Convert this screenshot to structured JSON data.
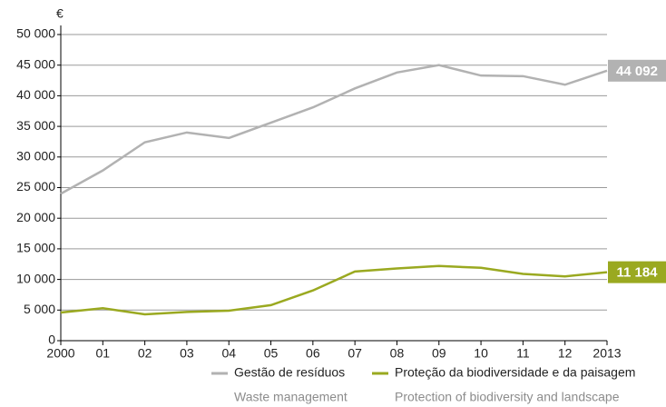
{
  "chart_data": {
    "type": "line",
    "y_unit": "€",
    "categories": [
      "2000",
      "01",
      "02",
      "03",
      "04",
      "05",
      "06",
      "07",
      "08",
      "09",
      "10",
      "11",
      "12",
      "2013"
    ],
    "series": [
      {
        "name": "Gestão de resíduos",
        "name_en": "Waste management",
        "color": "#b2b2b2",
        "values": [
          24000,
          27800,
          32400,
          34000,
          33100,
          35600,
          38100,
          41200,
          43800,
          45000,
          43300,
          43200,
          41800,
          44092
        ],
        "value_labels": [
          null,
          null,
          null,
          null,
          null,
          null,
          null,
          null,
          null,
          null,
          null,
          null,
          null,
          "44 092"
        ]
      },
      {
        "name": "Proteção da biodiversidade e da paisagem",
        "name_en": "Protection of biodiversity and landscape",
        "color": "#9aa920",
        "values": [
          4600,
          5300,
          4300,
          4700,
          4900,
          5800,
          8200,
          11300,
          11800,
          12200,
          11900,
          10900,
          10500,
          11184
        ],
        "value_labels": [
          null,
          null,
          null,
          null,
          null,
          null,
          null,
          null,
          null,
          null,
          null,
          null,
          null,
          "11 184"
        ]
      }
    ],
    "ylim": [
      0,
      50000
    ],
    "yticks": [
      0,
      {
        "value": 5000,
        "label": "5 000"
      },
      {
        "value": 10000,
        "label": "10 000"
      },
      {
        "value": 15000,
        "label": "15 000"
      },
      {
        "value": 20000,
        "label": "20 000"
      },
      {
        "value": 25000,
        "label": "25 000"
      },
      {
        "value": 30000,
        "label": "30 000"
      },
      {
        "value": 35000,
        "label": "35 000"
      },
      {
        "value": 40000,
        "label": "40 000"
      },
      {
        "value": 45000,
        "label": "45 000"
      },
      {
        "value": 50000,
        "label": "50 000"
      }
    ],
    "grid": true
  }
}
